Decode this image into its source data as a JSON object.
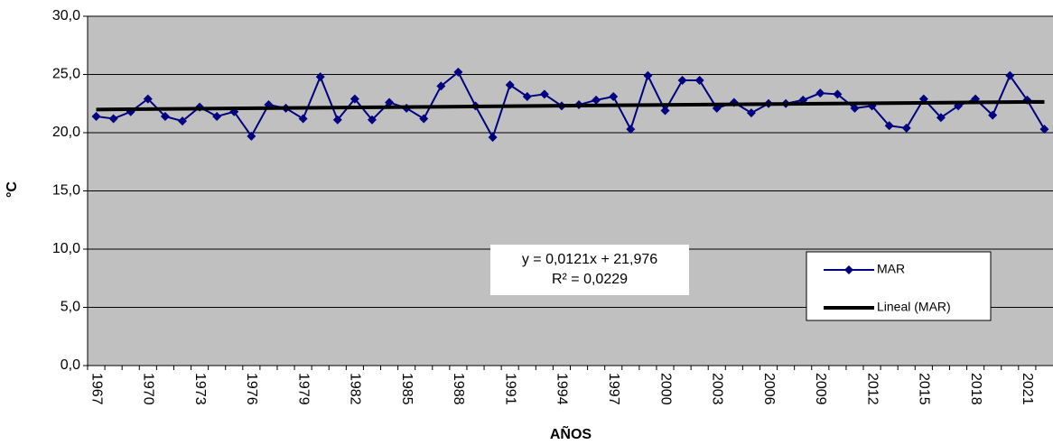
{
  "chart_data": {
    "type": "line",
    "y_label": "°C",
    "x_label": "AÑOS",
    "categories": [
      "1967",
      null,
      null,
      "1970",
      null,
      null,
      "1973",
      null,
      null,
      "1976",
      null,
      null,
      "1979",
      null,
      null,
      "1982",
      null,
      null,
      "1985",
      null,
      null,
      "1988",
      null,
      null,
      "1991",
      null,
      null,
      "1994",
      null,
      null,
      "1997",
      null,
      null,
      "2000",
      null,
      null,
      "2003",
      null,
      null,
      "2006",
      null,
      null,
      "2009",
      null,
      null,
      "2012",
      null,
      null,
      "2015",
      null,
      null,
      "2018",
      null,
      null,
      "2021",
      null
    ],
    "series": [
      {
        "name": "MAR",
        "color": "#000080",
        "values": [
          21.4,
          21.2,
          21.8,
          22.9,
          21.4,
          21.0,
          22.2,
          21.4,
          21.8,
          19.7,
          22.4,
          22.1,
          21.2,
          24.8,
          21.1,
          22.9,
          21.1,
          22.6,
          22.1,
          21.2,
          24.0,
          25.2,
          22.3,
          19.6,
          24.1,
          23.1,
          23.3,
          22.3,
          22.4,
          22.8,
          23.1,
          20.3,
          24.9,
          21.9,
          24.5,
          24.5,
          22.1,
          22.6,
          21.7,
          22.5,
          22.5,
          22.8,
          23.4,
          23.3,
          22.1,
          22.3,
          20.6,
          20.4,
          22.9,
          21.3,
          22.3,
          22.9,
          21.5,
          24.9,
          22.8,
          20.3
        ]
      }
    ],
    "trendline": {
      "name": "Lineal (MAR)",
      "color": "#000000",
      "values": [
        21.99,
        22.65
      ]
    },
    "annotation": [
      "y = 0,0121x + 21,976",
      "R² = 0,0229"
    ],
    "ylim": [
      0,
      30
    ],
    "yticks": [
      {
        "value": 0,
        "label": "0,0"
      },
      {
        "value": 5,
        "label": "5,0"
      },
      {
        "value": 10,
        "label": "10,0"
      },
      {
        "value": 15,
        "label": "15,0"
      },
      {
        "value": 20,
        "label": "20,0"
      },
      {
        "value": 25,
        "label": "25,0"
      },
      {
        "value": 30,
        "label": "30,0"
      }
    ],
    "grid": true,
    "plot_background": "#c0c0c0",
    "legend": "lower right"
  }
}
